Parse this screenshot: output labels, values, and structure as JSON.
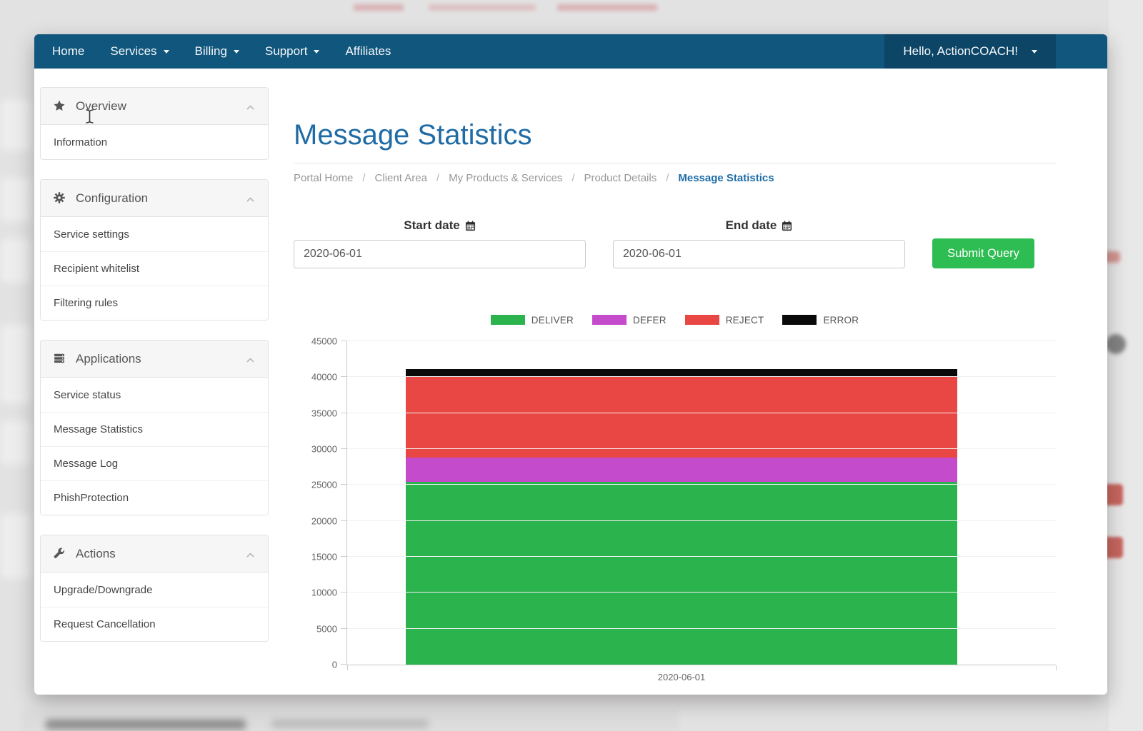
{
  "theme": {
    "navbar_bg": "#11567C",
    "navbar_active_bg": "#0C4565",
    "title_color": "#1F6BA5",
    "breadcrumb_active_color": "#1F6DA8",
    "button_bg": "#2EBD52",
    "panel_header_bg": "#F6F6F6",
    "chart_grid_color": "#F1F1F1"
  },
  "navbar": {
    "items": [
      {
        "label": "Home",
        "caret": false
      },
      {
        "label": "Services",
        "caret": true
      },
      {
        "label": "Billing",
        "caret": true
      },
      {
        "label": "Support",
        "caret": true
      },
      {
        "label": "Affiliates",
        "caret": false
      }
    ],
    "user_menu_label": "Hello, ActionCOACH!"
  },
  "sidebar": {
    "panels": [
      {
        "title": "Overview",
        "icon": "star-icon",
        "items": [
          "Information"
        ]
      },
      {
        "title": "Configuration",
        "icon": "gear-icon",
        "items": [
          "Service settings",
          "Recipient whitelist",
          "Filtering rules"
        ]
      },
      {
        "title": "Applications",
        "icon": "server-icon",
        "items": [
          "Service status",
          "Message Statistics",
          "Message Log",
          "PhishProtection"
        ]
      },
      {
        "title": "Actions",
        "icon": "wrench-icon",
        "items": [
          "Upgrade/Downgrade",
          "Request Cancellation"
        ]
      }
    ]
  },
  "main": {
    "title": "Message Statistics",
    "breadcrumb": [
      "Portal Home",
      "Client Area",
      "My Products & Services",
      "Product Details",
      "Message Statistics"
    ],
    "form": {
      "start_label": "Start date",
      "start_value": "2020-06-01",
      "end_label": "End date",
      "end_value": "2020-06-01",
      "submit_label": "Submit Query"
    }
  },
  "chart_data": {
    "type": "bar",
    "stacked": true,
    "categories": [
      "2020-06-01"
    ],
    "series": [
      {
        "name": "DELIVER",
        "color": "#2BB44E",
        "values": [
          25400
        ]
      },
      {
        "name": "DEFER",
        "color": "#C44BCC",
        "values": [
          3400
        ]
      },
      {
        "name": "REJECT",
        "color": "#E94743",
        "values": [
          11300
        ]
      },
      {
        "name": "ERROR",
        "color": "#0A0A0A",
        "values": [
          1000
        ]
      }
    ],
    "total": [
      41100
    ],
    "ylim": [
      0,
      45000
    ],
    "ytick_step": 5000,
    "grid": true,
    "legend_position": "top"
  }
}
